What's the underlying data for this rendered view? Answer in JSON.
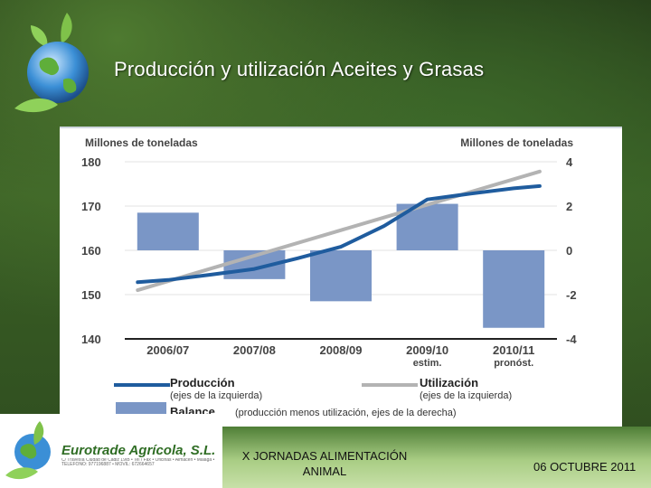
{
  "slide": {
    "title": "Producción y utilización Aceites y Grasas"
  },
  "colors": {
    "production": "#1f5c9e",
    "utilization": "#b3b3b3",
    "balance": "#7a96c6",
    "logo_green": "#2f6d24"
  },
  "icons": {
    "globe": "globe-with-leaves-icon",
    "logo": "eurotrade-leaf-logo-icon"
  },
  "logo": {
    "name": "Eurotrade Agrícola, S.L.",
    "fine_print": "C/ Travesía Ciudad de Cádiz 19/B • Tel / Fax • Oficinas • Almacén • Málaga • TELEFONO: 977196887 • MOVIL: 672664657"
  },
  "footer": {
    "event_line1": "X JORNADAS ALIMENTACIÓN",
    "event_line2": "ANIMAL",
    "date": "06 OCTUBRE 2011"
  },
  "chart_data": {
    "type": "bar",
    "left_axis_label": "Millones de toneladas",
    "right_axis_label": "Millones de toneladas",
    "categories": [
      {
        "line1": "2006/07",
        "line2": ""
      },
      {
        "line1": "2007/08",
        "line2": ""
      },
      {
        "line1": "2008/09",
        "line2": ""
      },
      {
        "line1": "2009/10",
        "line2": "estim."
      },
      {
        "line1": "2010/11",
        "line2": "pronóst."
      }
    ],
    "left_ylim": [
      140,
      180
    ],
    "left_ticks": [
      "180",
      "170",
      "160",
      "150",
      "140"
    ],
    "right_ylim": [
      -4,
      4
    ],
    "right_ticks": [
      "4",
      "2",
      "0",
      "-2",
      "-4"
    ],
    "balance": [
      1.7,
      -1.3,
      -2.3,
      2.1,
      -3.5
    ],
    "production_points": [
      {
        "x": -0.35,
        "y": 152.8
      },
      {
        "x": 0,
        "y": 153.3
      },
      {
        "x": 0.5,
        "y": 154.5
      },
      {
        "x": 1,
        "y": 155.8
      },
      {
        "x": 1.5,
        "y": 158.2
      },
      {
        "x": 2,
        "y": 160.8
      },
      {
        "x": 2.5,
        "y": 165.5
      },
      {
        "x": 3,
        "y": 171.5
      },
      {
        "x": 3.5,
        "y": 172.8
      },
      {
        "x": 4,
        "y": 174.0
      },
      {
        "x": 4.3,
        "y": 174.5
      }
    ],
    "utilization_points": [
      {
        "x": -0.35,
        "y": 151.0
      },
      {
        "x": 4.3,
        "y": 177.8
      }
    ],
    "legend": {
      "production": {
        "label": "Producción",
        "sub": "(ejes de la izquierda)"
      },
      "utilization": {
        "label": "Utilización",
        "sub": "(ejes de la izquierda)"
      },
      "balance": {
        "label": "Balance",
        "sub": "(producción menos utilización, ejes de la derecha)"
      }
    }
  }
}
